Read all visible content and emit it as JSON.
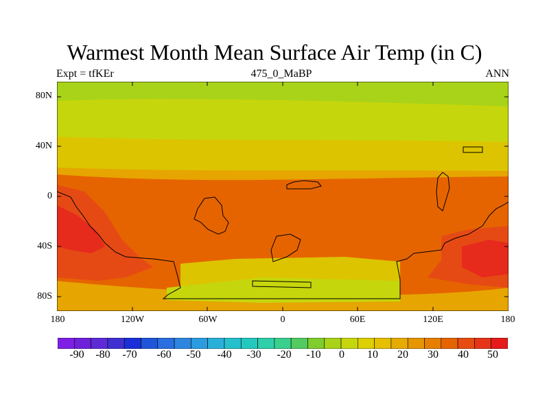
{
  "title": "Warmest Month Mean Surface Air Temp (in C)",
  "subtitle_left": "Expt = tfKEr",
  "subtitle_center": "475_0_MaBP",
  "subtitle_right": "ANN",
  "lat_ticks": [
    "80N",
    "40N",
    "0",
    "40S",
    "80S"
  ],
  "lon_ticks": [
    "180",
    "120W",
    "60W",
    "0",
    "60E",
    "120E",
    "180"
  ],
  "colorbar": {
    "labels": [
      "-90",
      "-80",
      "-70",
      "-60",
      "-50",
      "-40",
      "-30",
      "-20",
      "-10",
      "0",
      "10",
      "20",
      "30",
      "40",
      "50"
    ],
    "colors": [
      "#7f1fe6",
      "#6e22d9",
      "#5e2bd6",
      "#3f30d0",
      "#1a2fd8",
      "#1f55d9",
      "#2a6ee0",
      "#2e85e0",
      "#2b9ce0",
      "#2ab0d8",
      "#26c0cc",
      "#25c8bf",
      "#2ecfaa",
      "#39cf8c",
      "#52cc60",
      "#7fcd2e",
      "#a8d318",
      "#c6d60c",
      "#dcd000",
      "#e6c000",
      "#e6ab00",
      "#e69600",
      "#e67e00",
      "#e66400",
      "#e64c10",
      "#e63418",
      "#e61a1a"
    ]
  },
  "colors": {
    "band_0_10": "#a8d318",
    "band_10_20": "#c6d60c",
    "band_20_30": "#dcc400",
    "band_30_40": "#e6a500",
    "band_40_50": "#e66400",
    "band_50_60": "#e64a14",
    "band_over_60": "#e62a1c",
    "coastline": "#000000"
  }
}
